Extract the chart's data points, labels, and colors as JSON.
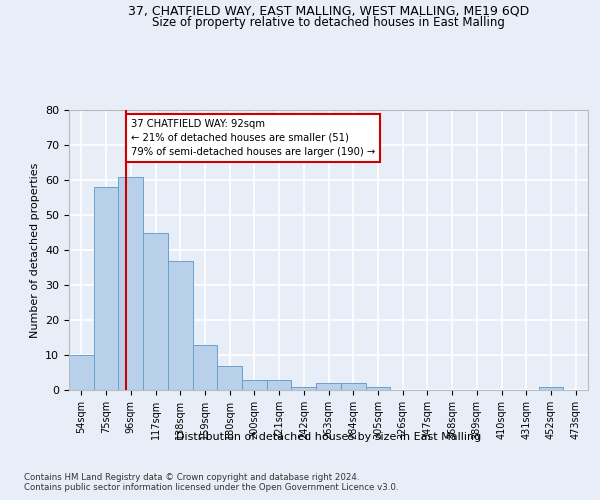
{
  "title_line1": "37, CHATFIELD WAY, EAST MALLING, WEST MALLING, ME19 6QD",
  "title_line2": "Size of property relative to detached houses in East Malling",
  "xlabel": "Distribution of detached houses by size in East Malling",
  "ylabel": "Number of detached properties",
  "categories": [
    "54sqm",
    "75sqm",
    "96sqm",
    "117sqm",
    "138sqm",
    "159sqm",
    "180sqm",
    "200sqm",
    "221sqm",
    "242sqm",
    "263sqm",
    "284sqm",
    "305sqm",
    "326sqm",
    "347sqm",
    "368sqm",
    "389sqm",
    "410sqm",
    "431sqm",
    "452sqm",
    "473sqm"
  ],
  "values": [
    10,
    58,
    61,
    45,
    37,
    13,
    7,
    3,
    3,
    1,
    2,
    2,
    1,
    0,
    0,
    0,
    0,
    0,
    0,
    1,
    0
  ],
  "bar_color": "#b8d0ea",
  "bar_edge_color": "#6aa0cc",
  "annotation_text": "37 CHATFIELD WAY: 92sqm\n← 21% of detached houses are smaller (51)\n79% of semi-detached houses are larger (190) →",
  "annotation_box_color": "#ffffff",
  "annotation_box_edge": "#cc0000",
  "red_line_color": "#cc0000",
  "ylim": [
    0,
    80
  ],
  "yticks": [
    0,
    10,
    20,
    30,
    40,
    50,
    60,
    70,
    80
  ],
  "footer_line1": "Contains HM Land Registry data © Crown copyright and database right 2024.",
  "footer_line2": "Contains public sector information licensed under the Open Government Licence v3.0.",
  "bg_color": "#e8eef8",
  "plot_bg_color": "#e8eef8",
  "grid_color": "#ffffff",
  "title_fontsize": 9,
  "subtitle_fontsize": 8.5
}
